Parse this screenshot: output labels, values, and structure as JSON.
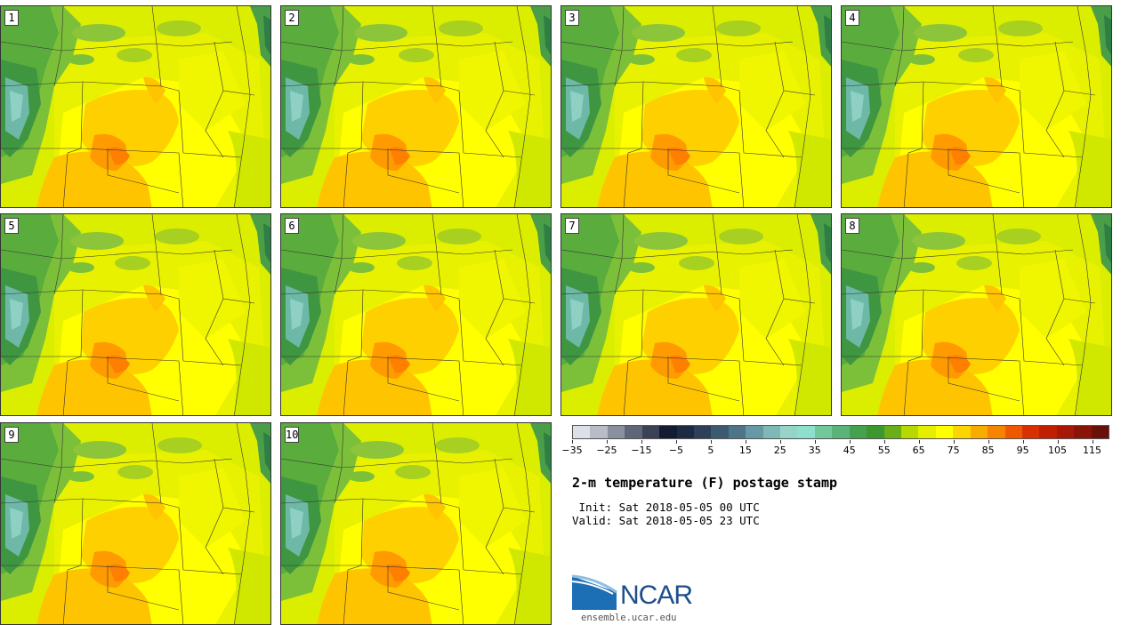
{
  "panels": [
    {
      "label": "1"
    },
    {
      "label": "2"
    },
    {
      "label": "3"
    },
    {
      "label": "4"
    },
    {
      "label": "5"
    },
    {
      "label": "6"
    },
    {
      "label": "7"
    },
    {
      "label": "8"
    },
    {
      "label": "9"
    },
    {
      "label": "10"
    }
  ],
  "colorbar": {
    "colors": [
      "#dde0e6",
      "#b8bcc6",
      "#8a909e",
      "#5e6678",
      "#3a4258",
      "#141c34",
      "#1c2a44",
      "#2c4058",
      "#3c5a70",
      "#4e7488",
      "#6898a4",
      "#80b8b8",
      "#96d4c8",
      "#8ee0cc",
      "#72c89a",
      "#5ab47a",
      "#45a050",
      "#3e9630",
      "#6aae18",
      "#b8d800",
      "#e4f000",
      "#ffff00",
      "#fcd400",
      "#f8ac00",
      "#f68400",
      "#ee5800",
      "#d83000",
      "#c02000",
      "#a81808",
      "#8a1408",
      "#6a1008"
    ],
    "tick_labels": [
      "−35",
      "−25",
      "−15",
      "−5",
      "5",
      "15",
      "25",
      "35",
      "45",
      "55",
      "65",
      "75",
      "85",
      "95",
      "105",
      "115"
    ]
  },
  "title": "2-m temperature (F) postage stamp",
  "init": " Init: Sat 2018-05-05 00 UTC",
  "valid": "Valid: Sat 2018-05-05 23 UTC",
  "logo": {
    "name": "NCAR",
    "url": "ensemble.ucar.edu"
  }
}
